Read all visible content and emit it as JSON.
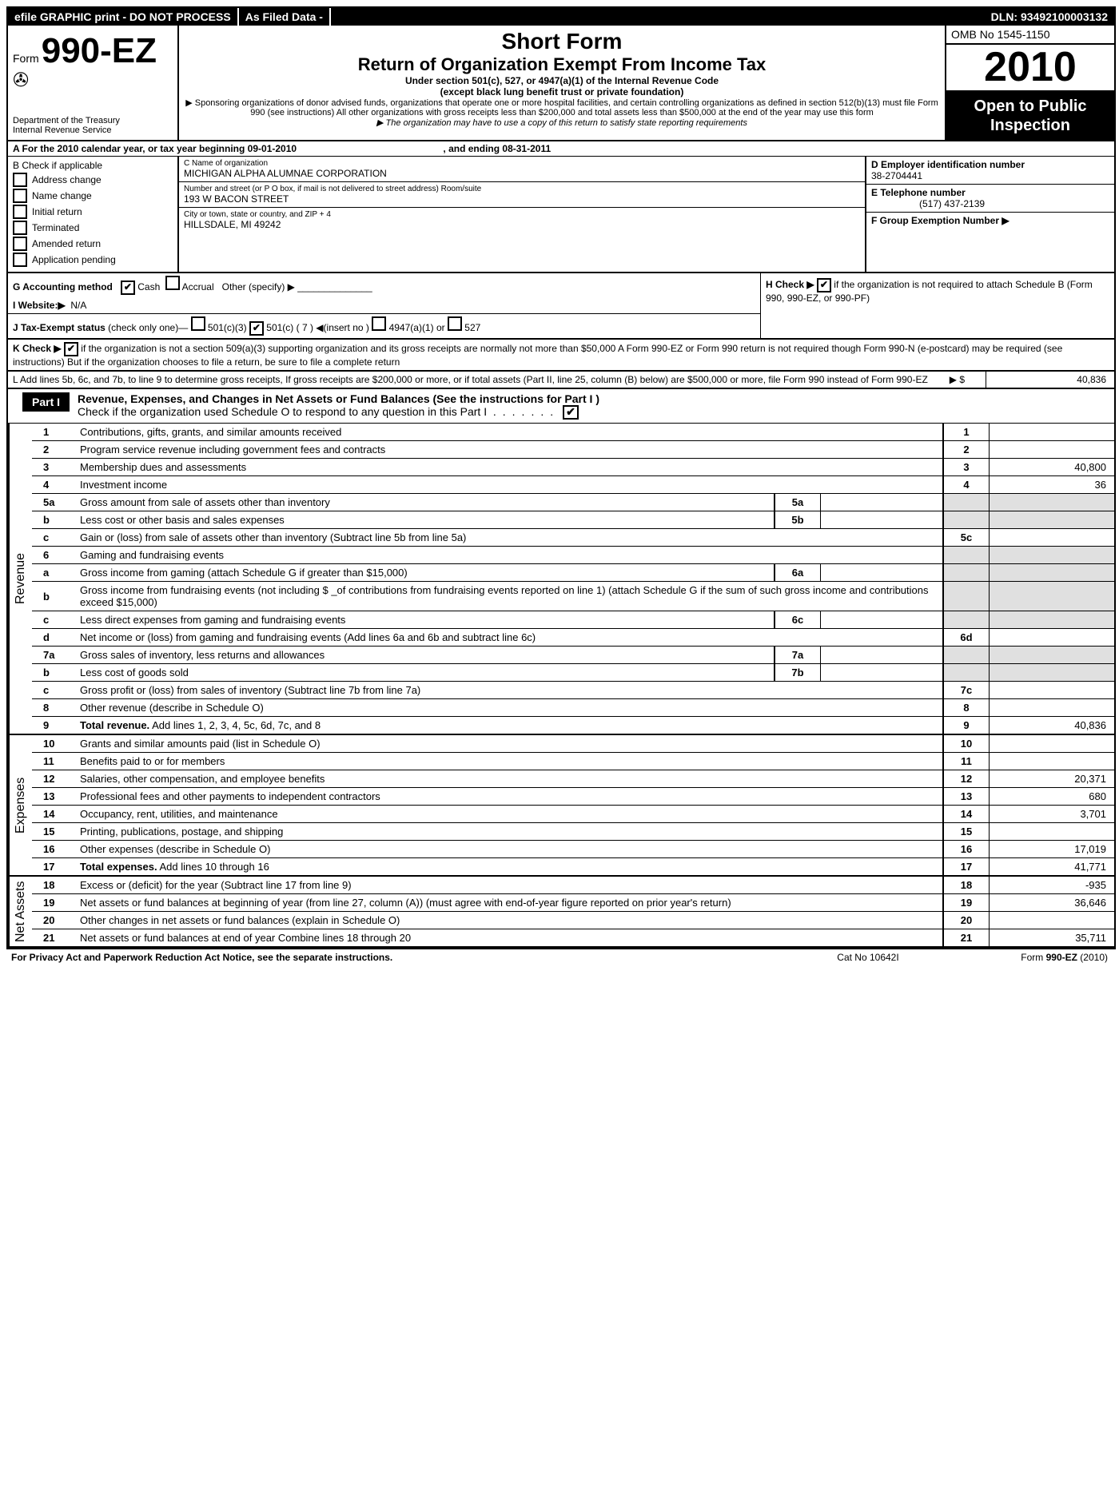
{
  "topbar": {
    "left": "efile GRAPHIC print - DO NOT PROCESS",
    "mid": "As Filed Data -",
    "dln": "DLN: 93492100003132"
  },
  "header": {
    "form_prefix": "Form",
    "form_number": "990-EZ",
    "dept": "Department of the Treasury",
    "irs": "Internal Revenue Service",
    "short_form": "Short Form",
    "return_title": "Return of Organization Exempt From Income Tax",
    "under": "Under section 501(c), 527, or 4947(a)(1) of the Internal Revenue Code",
    "except": "(except black lung benefit trust or private foundation)",
    "sponsoring": "▶ Sponsoring organizations of donor advised funds, organizations that operate one or more hospital facilities, and certain controlling organizations as defined in section 512(b)(13) must file Form 990 (see instructions)  All other organizations with gross receipts less than $200,000 and total assets less than $500,000 at the end of the year may use this form",
    "copy_note": "▶ The organization may have to use a copy of this return to satisfy state reporting requirements",
    "omb": "OMB No 1545-1150",
    "year": "2010",
    "open": "Open to Public Inspection"
  },
  "row_a": {
    "text_pre": "A  For the 2010 calendar year, or tax year beginning ",
    "begin": "09-01-2010",
    "text_mid": " , and ending ",
    "end": "08-31-2011"
  },
  "section_b": {
    "title": "B  Check if applicable",
    "items": [
      "Address change",
      "Name change",
      "Initial return",
      "Terminated",
      "Amended return",
      "Application pending"
    ]
  },
  "section_c": {
    "name_label": "C Name of organization",
    "name": "MICHIGAN ALPHA ALUMNAE CORPORATION",
    "street_label": "Number and street (or P  O  box, if mail is not delivered to street address) Room/suite",
    "street": "193 W BACON STREET",
    "city_label": "City or town, state or country, and ZIP + 4",
    "city": "HILLSDALE, MI  49242"
  },
  "section_d": {
    "label": "D Employer identification number",
    "value": "38-2704441"
  },
  "section_e": {
    "label": "E Telephone number",
    "value": "(517) 437-2139"
  },
  "section_f": {
    "label": "F Group Exemption Number ▶",
    "value": ""
  },
  "row_g": {
    "label": "G Accounting method",
    "cash": "Cash",
    "accrual": "Accrual",
    "other": "Other (specify) ▶"
  },
  "row_i": {
    "label": "I Website:▶",
    "value": "N/A"
  },
  "row_j": {
    "label": "J Tax-Exempt status",
    "note": "(check only one)—",
    "opts": [
      "501(c)(3)",
      "501(c) ( 7 ) ◀(insert no )",
      "4947(a)(1) or",
      "527"
    ]
  },
  "row_h": {
    "text": "H  Check ▶",
    "note": " if the organization is not required to attach Schedule B (Form 990, 990-EZ, or 990-PF)"
  },
  "row_k": {
    "text": "K Check ▶",
    "note": " if the organization is not a section 509(a)(3) supporting organization and its gross receipts are normally not more than $50,000  A Form 990-EZ or Form 990 return is not required though Form 990-N (e-postcard) may be required (see instructions) But if the organization chooses to file a return, be sure to file a complete return"
  },
  "row_l": {
    "text": "L Add lines 5b, 6c, and 7b, to line 9 to determine gross receipts, If gross receipts are $200,000 or more, or if total assets (Part II, line 25, column (B) below) are $500,000 or more,  file Form 990 instead of Form 990-EZ",
    "amt_label": "▶ $",
    "amt": "40,836"
  },
  "part1": {
    "tab": "Part I",
    "title": "Revenue, Expenses, and Changes in Net Assets or Fund Balances (See the instructions for Part I )",
    "sub": "Check if the organization used Schedule O to respond to any question in this Part I"
  },
  "sections": {
    "revenue": "Revenue",
    "expenses": "Expenses",
    "netassets": "Net Assets"
  },
  "rows": {
    "r1": {
      "n": "1",
      "t": "Contributions, gifts, grants, and similar amounts received",
      "v": ""
    },
    "r2": {
      "n": "2",
      "t": "Program service revenue including government fees and contracts",
      "v": ""
    },
    "r3": {
      "n": "3",
      "t": "Membership dues and assessments",
      "v": "40,800"
    },
    "r4": {
      "n": "4",
      "t": "Investment income",
      "v": "36"
    },
    "r5a": {
      "n": "5a",
      "t": "Gross amount from sale of assets other than inventory",
      "sn": "5a",
      "sv": ""
    },
    "r5b": {
      "n": "b",
      "t": "Less  cost or other basis and sales expenses",
      "sn": "5b",
      "sv": ""
    },
    "r5c": {
      "n": "c",
      "t": "Gain or (loss) from sale of assets other than inventory (Subtract line 5b from line 5a)",
      "ln": "5c",
      "v": ""
    },
    "r6": {
      "n": "6",
      "t": "Gaming and fundraising events"
    },
    "r6a": {
      "n": "a",
      "t": "Gross income from gaming (attach Schedule G if greater than $15,000)",
      "sn": "6a",
      "sv": ""
    },
    "r6b": {
      "n": "b",
      "t": "Gross income from fundraising events (not including $ _of contributions from fundraising events reported on line 1) (attach Schedule G if the sum of such gross income and contributions exceed $15,000)"
    },
    "r6c": {
      "n": "c",
      "t": "Less  direct expenses from gaming and fundraising events",
      "sn": "6c",
      "sv": ""
    },
    "r6d": {
      "n": "d",
      "t": "Net income or (loss) from gaming and fundraising events (Add lines 6a and 6b and subtract line 6c)",
      "ln": "6d",
      "v": ""
    },
    "r7a": {
      "n": "7a",
      "t": "Gross sales of inventory, less returns and allowances",
      "sn": "7a",
      "sv": ""
    },
    "r7b": {
      "n": "b",
      "t": "Less  cost of goods sold",
      "sn": "7b",
      "sv": ""
    },
    "r7c": {
      "n": "c",
      "t": "Gross profit or (loss) from sales of inventory (Subtract line 7b from line 7a)",
      "ln": "7c",
      "v": ""
    },
    "r8": {
      "n": "8",
      "t": "Other revenue (describe in Schedule O)",
      "v": ""
    },
    "r9": {
      "n": "9",
      "t": "Total revenue. Add lines 1, 2, 3, 4, 5c, 6d, 7c, and 8",
      "v": "40,836",
      "bold": true
    },
    "r10": {
      "n": "10",
      "t": "Grants and similar amounts paid (list in Schedule O)",
      "v": ""
    },
    "r11": {
      "n": "11",
      "t": "Benefits paid to or for members",
      "v": ""
    },
    "r12": {
      "n": "12",
      "t": "Salaries, other compensation, and employee benefits",
      "v": "20,371"
    },
    "r13": {
      "n": "13",
      "t": "Professional fees and other payments to independent contractors",
      "v": "680"
    },
    "r14": {
      "n": "14",
      "t": "Occupancy, rent, utilities, and maintenance",
      "v": "3,701"
    },
    "r15": {
      "n": "15",
      "t": "Printing, publications, postage, and shipping",
      "v": ""
    },
    "r16": {
      "n": "16",
      "t": "Other expenses (describe in Schedule O)",
      "v": "17,019"
    },
    "r17": {
      "n": "17",
      "t": "Total expenses. Add lines 10 through 16",
      "v": "41,771",
      "bold": true
    },
    "r18": {
      "n": "18",
      "t": "Excess or (deficit) for the year (Subtract line 17 from line 9)",
      "v": "-935"
    },
    "r19": {
      "n": "19",
      "t": "Net assets or fund balances at beginning of year (from line 27, column (A)) (must agree with end-of-year figure reported on prior year's return)",
      "v": "36,646"
    },
    "r20": {
      "n": "20",
      "t": "Other changes in net assets or fund balances (explain in Schedule O)",
      "v": ""
    },
    "r21": {
      "n": "21",
      "t": "Net assets or fund balances at end of year  Combine lines 18 through 20",
      "v": "35,711"
    }
  },
  "footer": {
    "left": "For Privacy Act and Paperwork Reduction Act Notice, see the separate instructions.",
    "mid": "Cat No 10642I",
    "right": "Form 990-EZ (2010)"
  }
}
